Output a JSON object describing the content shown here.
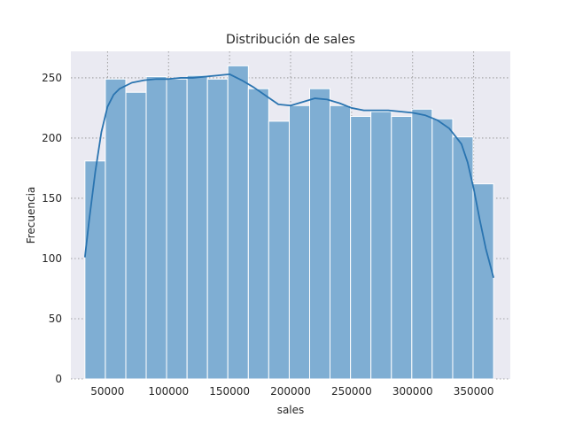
{
  "chart_data": {
    "type": "bar",
    "subtype": "histogram_with_kde",
    "title": "Distribución de sales",
    "xlabel": "sales",
    "ylabel": "Frecuencia",
    "xlim": [
      20000,
      380000
    ],
    "ylim": [
      0,
      272
    ],
    "xticks": [
      50000,
      100000,
      150000,
      200000,
      250000,
      300000,
      350000
    ],
    "yticks": [
      0,
      50,
      100,
      150,
      200,
      250
    ],
    "grid": true,
    "grid_style": "dotted",
    "background_color": "#eaeaf2",
    "bar_color": "#7faed3",
    "bar_edge_color": "#ffffff",
    "line_color": "#2a74b0",
    "bins": [
      {
        "x0": 31500,
        "x1": 48250,
        "count": 181
      },
      {
        "x0": 48250,
        "x1": 65000,
        "count": 249
      },
      {
        "x0": 65000,
        "x1": 81700,
        "count": 238
      },
      {
        "x0": 81700,
        "x1": 98400,
        "count": 251
      },
      {
        "x0": 98400,
        "x1": 115200,
        "count": 249
      },
      {
        "x0": 115200,
        "x1": 131900,
        "count": 252
      },
      {
        "x0": 131900,
        "x1": 148600,
        "count": 249
      },
      {
        "x0": 148600,
        "x1": 165400,
        "count": 260
      },
      {
        "x0": 165400,
        "x1": 182100,
        "count": 241
      },
      {
        "x0": 182100,
        "x1": 198900,
        "count": 214
      },
      {
        "x0": 198900,
        "x1": 215600,
        "count": 227
      },
      {
        "x0": 215600,
        "x1": 232300,
        "count": 241
      },
      {
        "x0": 232300,
        "x1": 249100,
        "count": 227
      },
      {
        "x0": 249100,
        "x1": 265800,
        "count": 218
      },
      {
        "x0": 265800,
        "x1": 282600,
        "count": 222
      },
      {
        "x0": 282600,
        "x1": 299300,
        "count": 218
      },
      {
        "x0": 299300,
        "x1": 316000,
        "count": 224
      },
      {
        "x0": 316000,
        "x1": 332800,
        "count": 216
      },
      {
        "x0": 332800,
        "x1": 349500,
        "count": 201
      },
      {
        "x0": 349500,
        "x1": 366300,
        "count": 162
      }
    ],
    "kde": {
      "x": [
        31500,
        35000,
        40000,
        45000,
        50000,
        55000,
        60000,
        70000,
        80000,
        90000,
        100000,
        110000,
        120000,
        130000,
        140000,
        150000,
        160000,
        170000,
        180000,
        190000,
        200000,
        210000,
        220000,
        230000,
        240000,
        250000,
        260000,
        270000,
        280000,
        290000,
        300000,
        310000,
        320000,
        330000,
        340000,
        345000,
        350000,
        355000,
        360000,
        366300
      ],
      "y": [
        101,
        132,
        172,
        205,
        226,
        236,
        241,
        246,
        248,
        249,
        249,
        250,
        250,
        251,
        252,
        253,
        248,
        242,
        235,
        228,
        227,
        230,
        233,
        232,
        229,
        225,
        223,
        223,
        223,
        222,
        221,
        219,
        215,
        208,
        195,
        180,
        158,
        132,
        108,
        84
      ]
    }
  }
}
